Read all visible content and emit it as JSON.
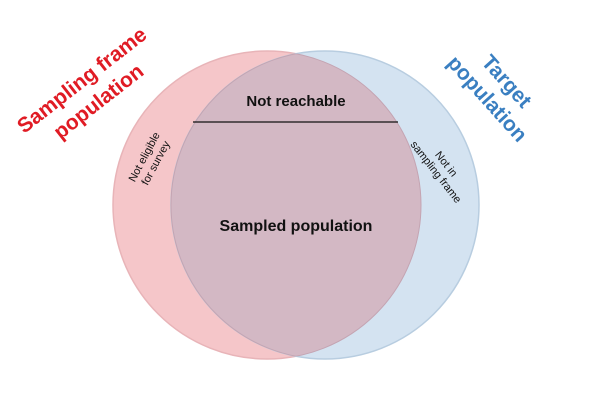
{
  "diagram": {
    "left_set": {
      "title_line1": "Sampling frame",
      "title_line2": "population",
      "color": "#e01b24",
      "fill": "#f5c6c9"
    },
    "right_set": {
      "title_line1": "Target",
      "title_line2": "population",
      "color": "#3a7fc1",
      "fill": "#d4e3f1"
    },
    "intersection": {
      "fill": "#d3b8c4",
      "top_label": "Not reachable",
      "main_label": "Sampled population"
    },
    "left_only": {
      "line1": "Not eligible",
      "line2": "for survey"
    },
    "right_only": {
      "line1": "Not in",
      "line2": "sampling frame"
    }
  }
}
